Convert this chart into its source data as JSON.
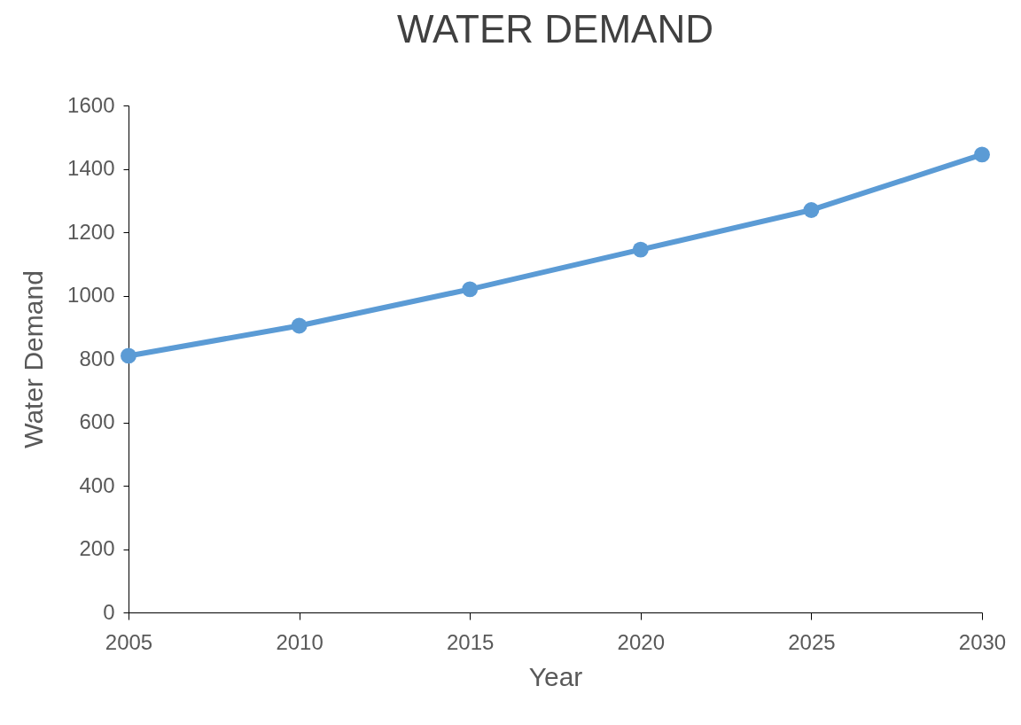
{
  "chart_data": {
    "type": "line",
    "title": "WATER DEMAND",
    "xlabel": "Year",
    "ylabel": "Water Demand",
    "x": [
      2005,
      2010,
      2015,
      2020,
      2025,
      2030
    ],
    "series": [
      {
        "color": "#5b9bd5",
        "values": [
          810,
          905,
          1020,
          1145,
          1270,
          1445
        ]
      }
    ],
    "xlim": [
      2005,
      2030
    ],
    "xticks": [
      2005,
      2010,
      2015,
      2020,
      2025,
      2030
    ],
    "ylim": [
      0,
      1600
    ],
    "yticks": [
      0,
      200,
      400,
      600,
      800,
      1000,
      1200,
      1400,
      1600
    ],
    "grid": false,
    "marker": "circle",
    "line_style": "solid"
  }
}
